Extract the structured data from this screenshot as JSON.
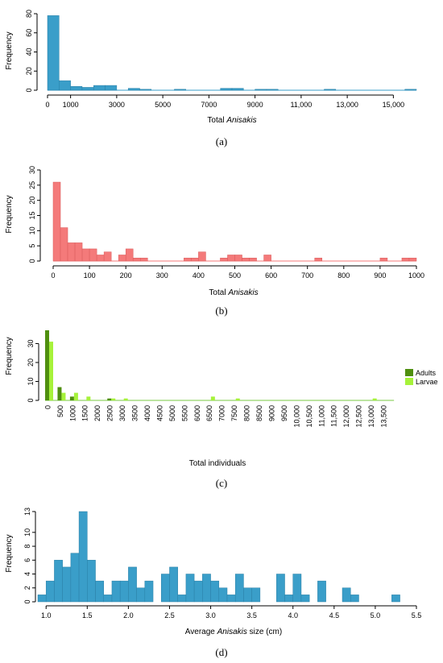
{
  "chart_data": [
    {
      "type": "bar",
      "panel_label": "(a)",
      "xlabel_prefix": "Total ",
      "xlabel_italic": "Anisakis",
      "ylabel": "Frequency",
      "bar_color": "#3a9ec9",
      "xlim": [
        0,
        16000
      ],
      "ylim": [
        0,
        80
      ],
      "x_ticks": [
        0,
        1000,
        3000,
        5000,
        7000,
        9000,
        11000,
        13000,
        15000
      ],
      "x_tick_labels": [
        "0",
        "1000",
        "3000",
        "5000",
        "7000",
        "9000",
        "11,000",
        "13,000",
        "15,000"
      ],
      "y_ticks": [
        0,
        20,
        40,
        60,
        80
      ],
      "bins": [
        {
          "x0": 0,
          "x1": 500,
          "v": 78
        },
        {
          "x0": 500,
          "x1": 1000,
          "v": 10
        },
        {
          "x0": 1000,
          "x1": 1500,
          "v": 4
        },
        {
          "x0": 1500,
          "x1": 2000,
          "v": 3
        },
        {
          "x0": 2000,
          "x1": 2500,
          "v": 5
        },
        {
          "x0": 2500,
          "x1": 3000,
          "v": 5
        },
        {
          "x0": 3500,
          "x1": 4000,
          "v": 2
        },
        {
          "x0": 4000,
          "x1": 4500,
          "v": 1
        },
        {
          "x0": 5500,
          "x1": 6000,
          "v": 1
        },
        {
          "x0": 7500,
          "x1": 8000,
          "v": 2
        },
        {
          "x0": 8000,
          "x1": 8500,
          "v": 2
        },
        {
          "x0": 9000,
          "x1": 9500,
          "v": 1
        },
        {
          "x0": 9500,
          "x1": 10000,
          "v": 1
        },
        {
          "x0": 12000,
          "x1": 12500,
          "v": 1
        },
        {
          "x0": 15500,
          "x1": 16000,
          "v": 1
        }
      ]
    },
    {
      "type": "bar",
      "panel_label": "(b)",
      "xlabel_prefix": "Total ",
      "xlabel_italic": "Anisakis",
      "ylabel": "Frequency",
      "bar_color": "#f47a7a",
      "xlim": [
        0,
        1000
      ],
      "ylim": [
        0,
        30
      ],
      "x_ticks": [
        0,
        100,
        200,
        300,
        400,
        500,
        600,
        700,
        800,
        900,
        1000
      ],
      "x_tick_labels": [
        "0",
        "100",
        "200",
        "300",
        "400",
        "500",
        "600",
        "700",
        "800",
        "900",
        "1000"
      ],
      "y_ticks": [
        0,
        5,
        10,
        15,
        20,
        25,
        30
      ],
      "bins": [
        {
          "x0": 0,
          "x1": 20,
          "v": 26
        },
        {
          "x0": 20,
          "x1": 40,
          "v": 11
        },
        {
          "x0": 40,
          "x1": 60,
          "v": 6
        },
        {
          "x0": 60,
          "x1": 80,
          "v": 6
        },
        {
          "x0": 80,
          "x1": 100,
          "v": 4
        },
        {
          "x0": 100,
          "x1": 120,
          "v": 4
        },
        {
          "x0": 120,
          "x1": 140,
          "v": 2
        },
        {
          "x0": 140,
          "x1": 160,
          "v": 3
        },
        {
          "x0": 180,
          "x1": 200,
          "v": 2
        },
        {
          "x0": 200,
          "x1": 220,
          "v": 4
        },
        {
          "x0": 220,
          "x1": 240,
          "v": 1
        },
        {
          "x0": 240,
          "x1": 260,
          "v": 1
        },
        {
          "x0": 360,
          "x1": 380,
          "v": 1
        },
        {
          "x0": 380,
          "x1": 400,
          "v": 1
        },
        {
          "x0": 400,
          "x1": 420,
          "v": 3
        },
        {
          "x0": 460,
          "x1": 480,
          "v": 1
        },
        {
          "x0": 480,
          "x1": 500,
          "v": 2
        },
        {
          "x0": 500,
          "x1": 520,
          "v": 2
        },
        {
          "x0": 520,
          "x1": 540,
          "v": 1
        },
        {
          "x0": 540,
          "x1": 560,
          "v": 1
        },
        {
          "x0": 580,
          "x1": 600,
          "v": 2
        },
        {
          "x0": 720,
          "x1": 740,
          "v": 1
        },
        {
          "x0": 900,
          "x1": 920,
          "v": 1
        },
        {
          "x0": 960,
          "x1": 980,
          "v": 1
        },
        {
          "x0": 980,
          "x1": 1000,
          "v": 1
        }
      ]
    },
    {
      "type": "bar",
      "panel_label": "(c)",
      "xlabel": "Total individuals",
      "ylabel": "Frequency",
      "ylim": [
        0,
        37
      ],
      "y_ticks": [
        0,
        10,
        20,
        30
      ],
      "categories": [
        "0",
        "500",
        "1000",
        "1500",
        "2000",
        "2500",
        "3000",
        "3500",
        "4000",
        "4500",
        "5000",
        "5500",
        "6000",
        "6500",
        "7000",
        "7500",
        "8000",
        "8500",
        "9000",
        "9500",
        "10,000",
        "10,500",
        "11,000",
        "11,500",
        "12,000",
        "12,500",
        "13,000",
        "13,500"
      ],
      "legend_position": "right",
      "series": [
        {
          "name": "Adults",
          "color": "#4f8f0f",
          "values": [
            37,
            7,
            2,
            0,
            0,
            1,
            0,
            0,
            0,
            0,
            0,
            0,
            0,
            0,
            0,
            0,
            0,
            0,
            0,
            0,
            0,
            0,
            0,
            0,
            0,
            0,
            0,
            0
          ]
        },
        {
          "name": "Larvae",
          "color": "#a6f23a",
          "values": [
            31,
            4,
            4,
            2,
            0,
            1,
            1,
            0,
            0,
            0,
            0,
            0,
            0,
            2,
            0,
            1,
            0,
            0,
            0,
            0,
            0,
            0,
            0,
            0,
            0,
            0,
            1,
            0
          ]
        }
      ]
    },
    {
      "type": "bar",
      "panel_label": "(d)",
      "xlabel_prefix": "Average ",
      "xlabel_italic": "Anisakis",
      "xlabel_suffix": " size (cm)",
      "ylabel": "Frequency",
      "bar_color": "#3a9ec9",
      "xlim": [
        0.9,
        5.5
      ],
      "ylim": [
        0,
        13
      ],
      "x_ticks": [
        1.0,
        1.5,
        2.0,
        2.5,
        3.0,
        3.5,
        4.0,
        4.5,
        5.0,
        5.5
      ],
      "x_tick_labels": [
        "1.0",
        "1.5",
        "2.0",
        "2.5",
        "3.0",
        "3.5",
        "4.0",
        "4.5",
        "5.0",
        "5.5"
      ],
      "y_ticks": [
        0,
        2,
        4,
        6,
        8,
        10,
        13
      ],
      "y_tick_labels": [
        "0",
        "2",
        "4",
        "6",
        "8",
        "10",
        "13"
      ],
      "bin_width": 0.1,
      "bin_start": 0.9,
      "values": [
        1,
        3,
        6,
        5,
        7,
        13,
        6,
        3,
        1,
        3,
        3,
        5,
        2,
        3,
        0,
        4,
        5,
        1,
        4,
        3,
        4,
        3,
        2,
        1,
        4,
        2,
        2,
        0,
        0,
        4,
        1,
        4,
        1,
        0,
        3,
        0,
        0,
        2,
        1,
        0,
        0,
        0,
        0,
        1
      ]
    }
  ]
}
